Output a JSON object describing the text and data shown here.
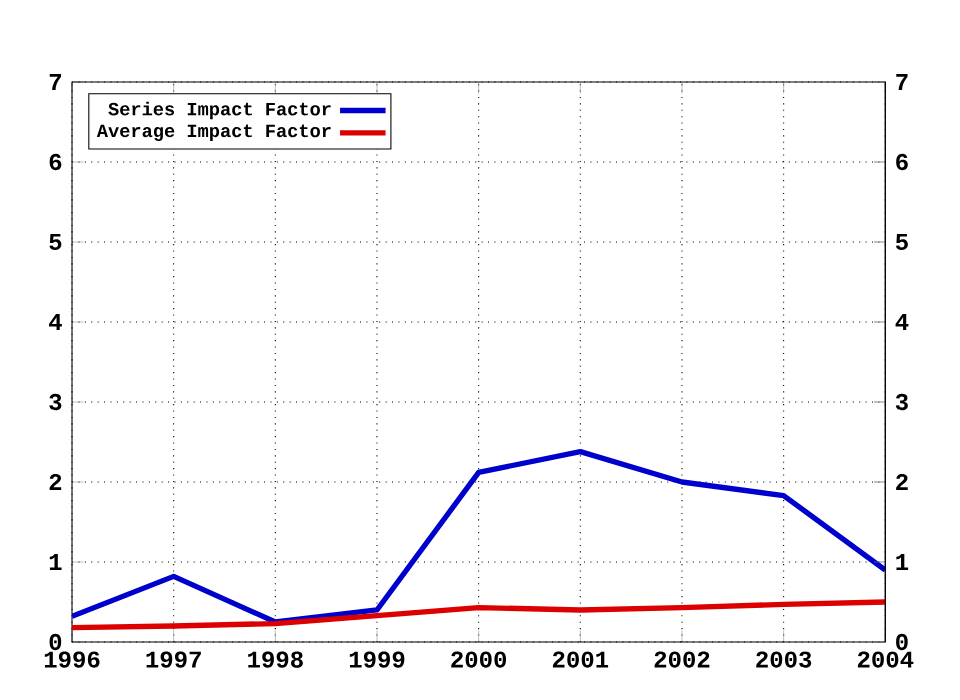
{
  "chart_data": {
    "type": "line",
    "x": [
      1996,
      1997,
      1998,
      1999,
      2000,
      2001,
      2002,
      2003,
      2004
    ],
    "series": [
      {
        "name": "Series Impact Factor",
        "color": "#0000cc",
        "values": [
          0.32,
          0.82,
          0.25,
          0.4,
          2.12,
          2.38,
          2.0,
          1.83,
          0.9
        ]
      },
      {
        "name": "Average Impact Factor",
        "color": "#dd0000",
        "values": [
          0.18,
          0.2,
          0.23,
          0.33,
          0.43,
          0.4,
          0.43,
          0.47,
          0.5
        ]
      }
    ],
    "xlim": [
      1996,
      2004
    ],
    "xticks": [
      1996,
      1997,
      1998,
      1999,
      2000,
      2001,
      2002,
      2003,
      2004
    ],
    "ylim": [
      0,
      7
    ],
    "yticks": [
      0,
      1,
      2,
      3,
      4,
      5,
      6,
      7
    ],
    "y2lim": [
      0,
      7
    ],
    "y2ticks": [
      0,
      1,
      2,
      3,
      4,
      5,
      6,
      7
    ],
    "grid": true,
    "legend": "top left",
    "marker": "none",
    "line_style": "solid"
  }
}
